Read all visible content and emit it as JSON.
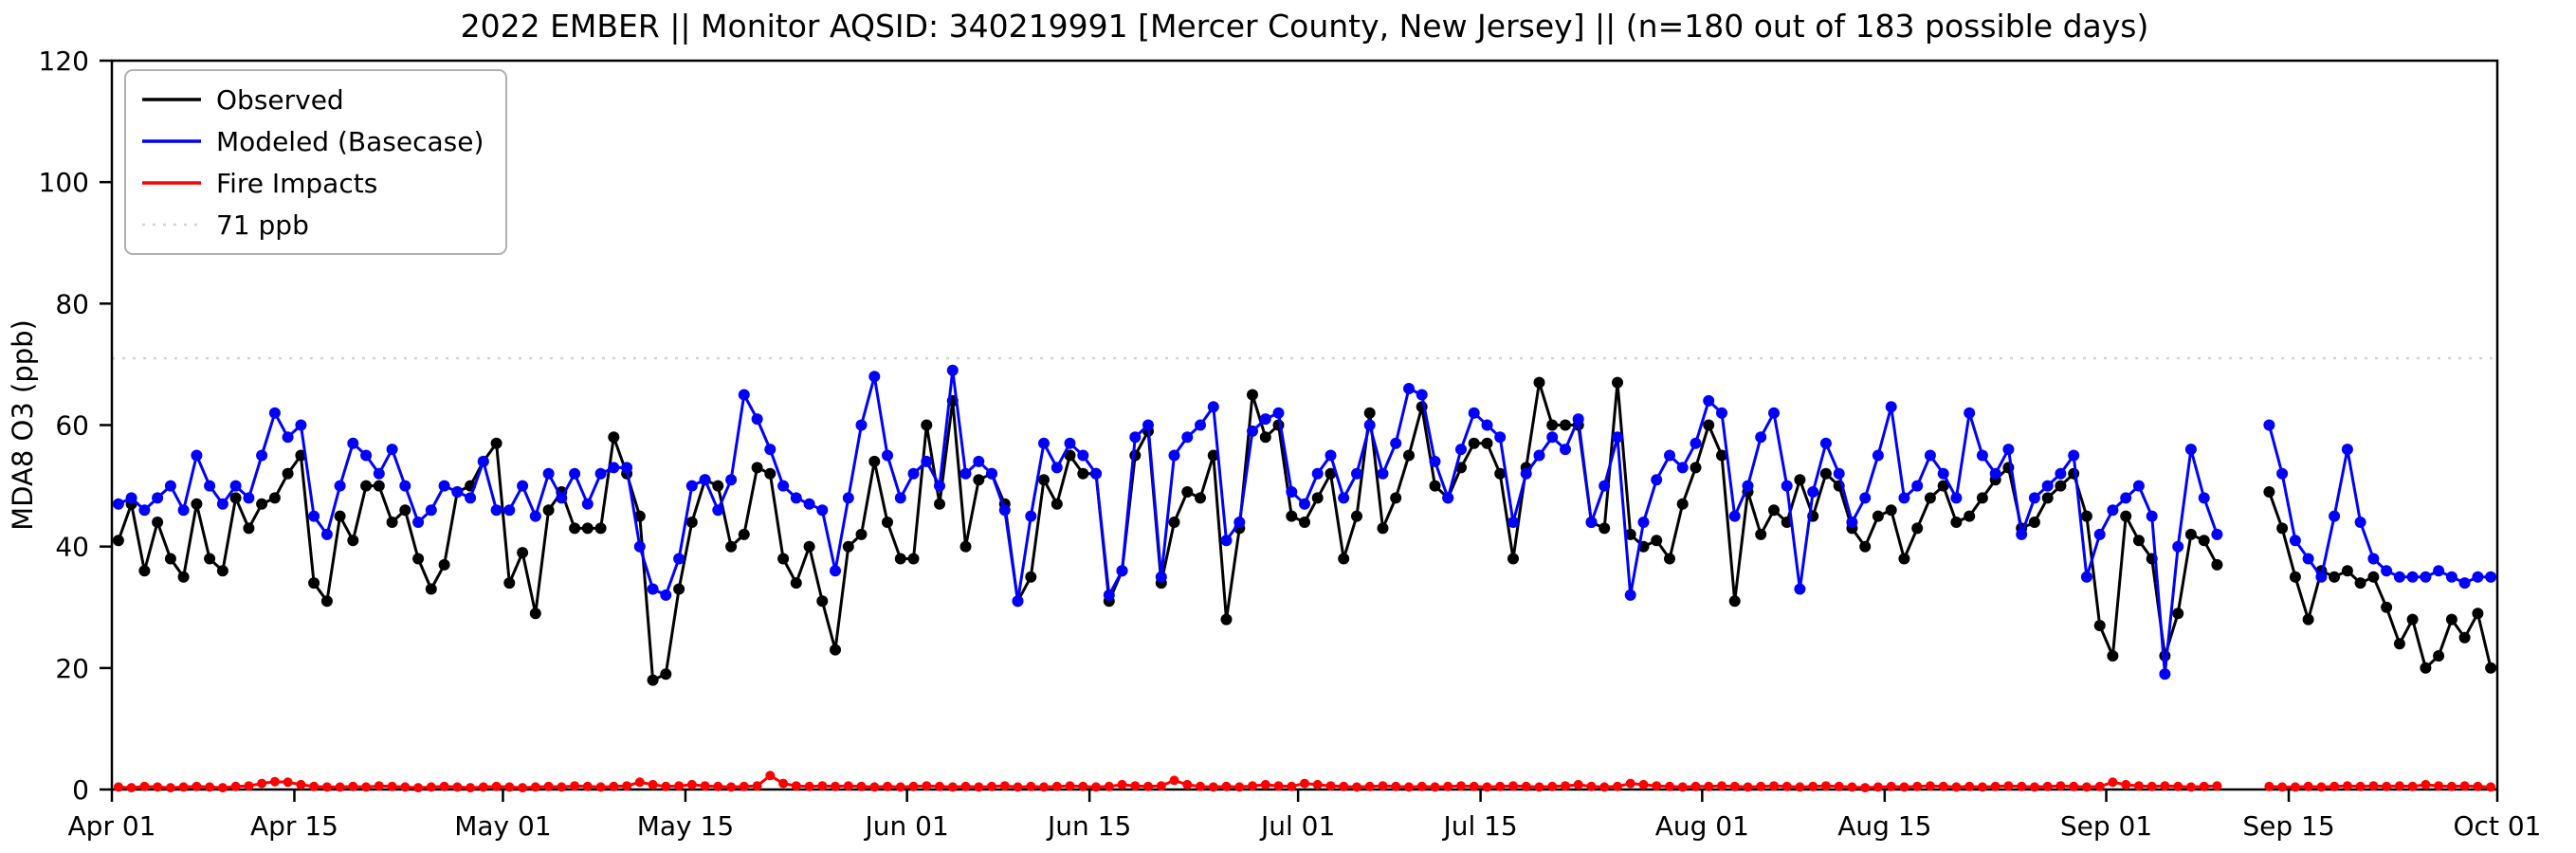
{
  "title": "2022 EMBER || Monitor AQSID: 340219991 [Mercer County, New Jersey] || (n=180 out of 183 possible days)",
  "chart_data": {
    "type": "line",
    "ylabel": "MDA8 O3 (ppb)",
    "ylim": [
      0,
      120
    ],
    "yticks": [
      0,
      20,
      40,
      60,
      80,
      100,
      120
    ],
    "xtick_labels": [
      "Apr 01",
      "Apr 15",
      "May 01",
      "May 15",
      "Jun 01",
      "Jun 15",
      "Jul 01",
      "Jul 15",
      "Aug 01",
      "Aug 15",
      "Sep 01",
      "Sep 15",
      "Oct 01"
    ],
    "xtick_days": [
      0,
      14,
      30,
      44,
      61,
      75,
      91,
      105,
      122,
      136,
      153,
      167,
      183
    ],
    "x_span_days": 183,
    "x_start_label": "Apr 01",
    "x_end_label": "Oct 01",
    "grid": false,
    "legend_position": "upper-left",
    "threshold": {
      "value": 71,
      "label": "71 ppb",
      "color": "#d3d3d3",
      "style": "dotted"
    },
    "series": [
      {
        "name": "Observed",
        "color": "#000000",
        "marker_radius": 6,
        "values": [
          41,
          47,
          36,
          44,
          38,
          35,
          47,
          38,
          36,
          48,
          43,
          47,
          48,
          52,
          55,
          34,
          31,
          45,
          41,
          50,
          50,
          44,
          46,
          38,
          33,
          37,
          49,
          50,
          54,
          57,
          34,
          39,
          29,
          46,
          49,
          43,
          43,
          43,
          58,
          52,
          45,
          18,
          19,
          33,
          44,
          51,
          50,
          40,
          42,
          53,
          52,
          38,
          34,
          40,
          31,
          23,
          40,
          42,
          54,
          44,
          38,
          38,
          60,
          47,
          64,
          40,
          51,
          52,
          47,
          31,
          35,
          51,
          47,
          55,
          52,
          52,
          31,
          36,
          55,
          59,
          34,
          44,
          49,
          48,
          55,
          28,
          43,
          65,
          58,
          60,
          45,
          44,
          48,
          52,
          38,
          45,
          62,
          43,
          48,
          55,
          63,
          50,
          48,
          53,
          57,
          57,
          52,
          38,
          53,
          67,
          60,
          60,
          60,
          44,
          43,
          67,
          42,
          40,
          41,
          38,
          47,
          53,
          60,
          55,
          31,
          49,
          42,
          46,
          44,
          51,
          45,
          52,
          50,
          43,
          40,
          45,
          46,
          38,
          43,
          48,
          50,
          44,
          45,
          48,
          51,
          53,
          43,
          44,
          48,
          50,
          52,
          45,
          27,
          22,
          45,
          41,
          38,
          22,
          29,
          42,
          41,
          37,
          null,
          null,
          null,
          49,
          43,
          35,
          28,
          36,
          35,
          36,
          34,
          35,
          30,
          24,
          28,
          20,
          22,
          28,
          25,
          29,
          20
        ]
      },
      {
        "name": "Modeled (Basecase)",
        "color": "#0000ff",
        "marker_radius": 6,
        "values": [
          47,
          48,
          46,
          48,
          50,
          46,
          55,
          50,
          47,
          50,
          48,
          55,
          62,
          58,
          60,
          45,
          42,
          50,
          57,
          55,
          52,
          56,
          50,
          44,
          46,
          50,
          49,
          48,
          54,
          46,
          46,
          50,
          45,
          52,
          48,
          52,
          47,
          52,
          53,
          53,
          40,
          33,
          32,
          38,
          50,
          51,
          46,
          51,
          65,
          61,
          56,
          50,
          48,
          47,
          46,
          36,
          48,
          60,
          68,
          55,
          48,
          52,
          54,
          50,
          69,
          52,
          54,
          52,
          46,
          31,
          45,
          57,
          53,
          57,
          55,
          52,
          32,
          36,
          58,
          60,
          35,
          55,
          58,
          60,
          63,
          41,
          44,
          59,
          61,
          62,
          49,
          47,
          52,
          55,
          48,
          52,
          60,
          52,
          57,
          66,
          65,
          54,
          48,
          56,
          62,
          60,
          58,
          44,
          52,
          55,
          58,
          56,
          61,
          44,
          50,
          58,
          32,
          44,
          51,
          55,
          53,
          57,
          64,
          62,
          45,
          50,
          58,
          62,
          50,
          33,
          49,
          57,
          52,
          44,
          48,
          55,
          63,
          48,
          50,
          55,
          52,
          48,
          62,
          55,
          52,
          56,
          42,
          48,
          50,
          52,
          55,
          35,
          42,
          46,
          48,
          50,
          45,
          19,
          40,
          56,
          48,
          42,
          null,
          null,
          null,
          60,
          52,
          41,
          38,
          35,
          45,
          56,
          44,
          38,
          36,
          35,
          35,
          35,
          36,
          35,
          34,
          35,
          35
        ]
      },
      {
        "name": "Fire Impacts",
        "color": "#ff0000",
        "marker_radius": 5,
        "values": [
          0.4,
          0.3,
          0.5,
          0.4,
          0.3,
          0.4,
          0.5,
          0.4,
          0.3,
          0.5,
          0.6,
          1.0,
          1.3,
          1.2,
          0.8,
          0.5,
          0.4,
          0.4,
          0.5,
          0.4,
          0.6,
          0.5,
          0.4,
          0.3,
          0.4,
          0.5,
          0.4,
          0.3,
          0.4,
          0.5,
          0.4,
          0.3,
          0.4,
          0.5,
          0.4,
          0.6,
          0.5,
          0.4,
          0.5,
          0.6,
          1.2,
          0.8,
          0.5,
          0.6,
          0.8,
          0.6,
          0.5,
          0.4,
          0.5,
          0.6,
          2.3,
          1.0,
          0.6,
          0.5,
          0.6,
          0.5,
          0.6,
          0.5,
          0.4,
          0.5,
          0.4,
          0.5,
          0.6,
          0.5,
          0.4,
          0.5,
          0.4,
          0.5,
          0.6,
          0.4,
          0.5,
          0.4,
          0.5,
          0.6,
          0.5,
          0.4,
          0.5,
          0.8,
          0.6,
          0.5,
          0.6,
          1.5,
          0.8,
          0.5,
          0.4,
          0.5,
          0.4,
          0.6,
          0.8,
          0.6,
          0.5,
          1.0,
          0.8,
          0.6,
          0.5,
          0.4,
          0.5,
          0.6,
          0.5,
          0.4,
          0.5,
          0.4,
          0.5,
          0.6,
          0.5,
          0.4,
          0.5,
          0.6,
          0.5,
          0.4,
          0.5,
          0.6,
          0.8,
          0.5,
          0.4,
          0.5,
          1.0,
          0.8,
          0.6,
          0.5,
          0.4,
          0.5,
          0.5,
          0.6,
          0.5,
          0.4,
          0.5,
          0.6,
          0.5,
          0.4,
          0.5,
          0.6,
          0.5,
          0.4,
          0.3,
          0.4,
          0.5,
          0.4,
          0.5,
          0.6,
          0.5,
          0.4,
          0.5,
          0.4,
          0.5,
          0.6,
          0.5,
          0.4,
          0.5,
          0.6,
          0.5,
          0.4,
          0.5,
          1.2,
          0.8,
          0.6,
          0.5,
          0.6,
          0.5,
          0.4,
          0.5,
          0.6,
          null,
          null,
          null,
          0.5,
          0.4,
          0.4,
          0.5,
          0.4,
          0.5,
          0.6,
          0.5,
          0.6,
          0.5,
          0.6,
          0.5,
          0.8,
          0.6,
          0.5,
          0.6,
          0.5,
          0.4
        ]
      }
    ]
  }
}
